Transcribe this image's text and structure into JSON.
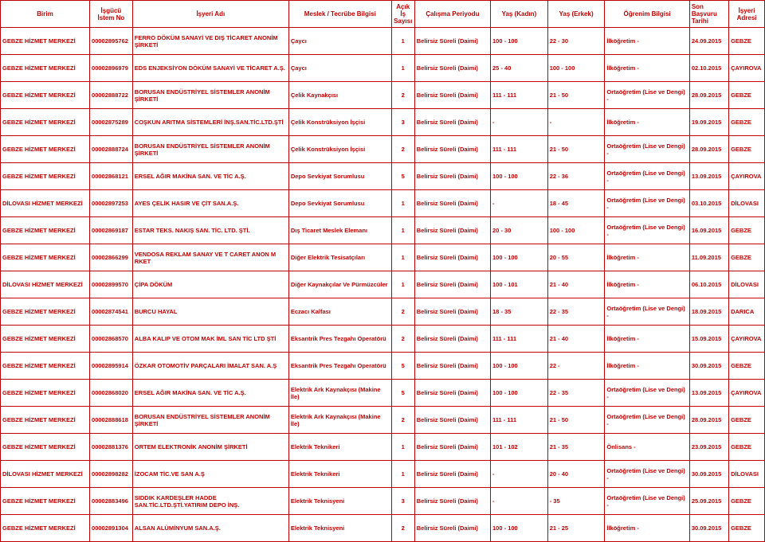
{
  "columns": [
    {
      "key": "birim",
      "label": "Birim",
      "class": "col-birim"
    },
    {
      "key": "istem",
      "label": "İşgücü İstem No",
      "class": "col-istem"
    },
    {
      "key": "isyeri",
      "label": "İşyeri Adı",
      "class": "col-isyeri"
    },
    {
      "key": "meslek",
      "label": "Meslek / Tecrübe Bilgisi",
      "class": "col-meslek"
    },
    {
      "key": "acik",
      "label": "Açık İş Sayısı",
      "class": "col-acik"
    },
    {
      "key": "calisma",
      "label": "Çalışma Periyodu",
      "class": "col-calisma"
    },
    {
      "key": "yaskadin",
      "label": "Yaş (Kadın)",
      "class": "col-yaskadin"
    },
    {
      "key": "yaserkek",
      "label": "Yaş (Erkek)",
      "class": "col-yaserkek"
    },
    {
      "key": "ogrenim",
      "label": "Öğrenim Bilgisi",
      "class": "col-ogrenim"
    },
    {
      "key": "tarih",
      "label": "Son Başvuru Tarihi",
      "class": "col-tarih"
    },
    {
      "key": "adres",
      "label": "İşyeri Adresi",
      "class": "col-adres"
    }
  ],
  "rows": [
    {
      "birim": "GEBZE HİZMET MERKEZİ",
      "istem": "00002895762",
      "isyeri": "FERRO DÖKÜM SANAYİ VE DIŞ TİCARET ANONİM ŞİRKETİ",
      "meslek": "Çaycı",
      "acik": "1",
      "calisma": "Belirsiz Süreli (Daimi)",
      "yaskadin": "100 - 100",
      "yaserkek": "22 - 30",
      "ogrenim": "İlköğretim -",
      "tarih": "24.09.2015",
      "adres": "GEBZE"
    },
    {
      "birim": "GEBZE HİZMET MERKEZİ",
      "istem": "00002896979",
      "isyeri": "EDS ENJEKSİYON DÖKÜM SANAYİ VE TİCARET A.Ş.",
      "meslek": "Çaycı",
      "acik": "1",
      "calisma": "Belirsiz Süreli (Daimi)",
      "yaskadin": "25 - 40",
      "yaserkek": "100 - 100",
      "ogrenim": "İlköğretim -",
      "tarih": "02.10.2015",
      "adres": "ÇAYIROVA"
    },
    {
      "birim": "GEBZE HİZMET MERKEZİ",
      "istem": "00002888722",
      "isyeri": "BORUSAN ENDÜSTRİYEL SİSTEMLER ANONİM ŞİRKETİ",
      "meslek": "Çelik Kaynakçısı",
      "acik": "2",
      "calisma": "Belirsiz Süreli (Daimi)",
      "yaskadin": "111 - 111",
      "yaserkek": "21 - 50",
      "ogrenim": "Ortaöğretim (Lise ve Dengi) -",
      "tarih": "28.09.2015",
      "adres": "GEBZE"
    },
    {
      "birim": "GEBZE HİZMET MERKEZİ",
      "istem": "00002875289",
      "isyeri": "COŞKUN ARITMA SİSTEMLERİ İNŞ.SAN.TİC.LTD.ŞTİ",
      "meslek": "Çelik Konstrüksiyon İşçisi",
      "acik": "3",
      "calisma": "Belirsiz Süreli (Daimi)",
      "yaskadin": "-",
      "yaserkek": "-",
      "ogrenim": "İlköğretim -",
      "tarih": "19.09.2015",
      "adres": "GEBZE"
    },
    {
      "birim": "GEBZE HİZMET MERKEZİ",
      "istem": "00002888724",
      "isyeri": "BORUSAN ENDÜSTRİYEL SİSTEMLER ANONİM ŞİRKETİ",
      "meslek": "Çelik Konstrüksiyon İşçisi",
      "acik": "2",
      "calisma": "Belirsiz Süreli (Daimi)",
      "yaskadin": "111 - 111",
      "yaserkek": "21 - 50",
      "ogrenim": "Ortaöğretim (Lise ve Dengi) -",
      "tarih": "28.09.2015",
      "adres": "GEBZE"
    },
    {
      "birim": "GEBZE HİZMET MERKEZİ",
      "istem": "00002868121",
      "isyeri": "ERSEL AĞIR MAKİNA SAN. VE TİC A.Ş.",
      "meslek": "Depo Sevkiyat Sorumlusu",
      "acik": "5",
      "calisma": "Belirsiz Süreli (Daimi)",
      "yaskadin": "100 - 100",
      "yaserkek": "22 - 36",
      "ogrenim": "Ortaöğretim (Lise ve Dengi) -",
      "tarih": "13.09.2015",
      "adres": "ÇAYIROVA"
    },
    {
      "birim": "DİLOVASI HİZMET MERKEZİ",
      "istem": "00002897253",
      "isyeri": "AYES ÇELİK HASIR VE ÇİT SAN.A.Ş.",
      "meslek": "Depo Sevkiyat Sorumlusu",
      "acik": "1",
      "calisma": "Belirsiz Süreli (Daimi)",
      "yaskadin": "-",
      "yaserkek": "18 - 45",
      "ogrenim": "Ortaöğretim (Lise ve Dengi) -",
      "tarih": "03.10.2015",
      "adres": "DİLOVASI"
    },
    {
      "birim": "GEBZE HİZMET MERKEZİ",
      "istem": "00002869187",
      "isyeri": "ESTAR TEKS. NAKIŞ SAN. TİC. LTD. ŞTİ.",
      "meslek": "Dış Ticaret Meslek Elemanı",
      "acik": "1",
      "calisma": "Belirsiz Süreli (Daimi)",
      "yaskadin": "20 - 30",
      "yaserkek": "100 - 100",
      "ogrenim": "Ortaöğretim (Lise ve Dengi) -",
      "tarih": "16.09.2015",
      "adres": "GEBZE"
    },
    {
      "birim": "GEBZE HİZMET MERKEZİ",
      "istem": "00002866299",
      "isyeri": "VENDOSA REKLAM SANAY VE T CARET ANON M RKET",
      "meslek": "Diğer Elektrik Tesisatçıları",
      "acik": "1",
      "calisma": "Belirsiz Süreli (Daimi)",
      "yaskadin": "100 - 100",
      "yaserkek": "20 - 55",
      "ogrenim": "İlköğretim -",
      "tarih": "11.09.2015",
      "adres": "GEBZE"
    },
    {
      "birim": "DİLOVASI HİZMET MERKEZİ",
      "istem": "00002899570",
      "isyeri": "ÇİPA DÖKÜM",
      "meslek": "Diğer Kaynakçılar Ve Pürmüzcüler",
      "acik": "1",
      "calisma": "Belirsiz Süreli (Daimi)",
      "yaskadin": "100 - 101",
      "yaserkek": "21 - 40",
      "ogrenim": "İlköğretim -",
      "tarih": "06.10.2015",
      "adres": "DİLOVASI"
    },
    {
      "birim": "GEBZE HİZMET MERKEZİ",
      "istem": "00002874541",
      "isyeri": "BURCU HAYAL",
      "meslek": "Eczacı Kalfası",
      "acik": "2",
      "calisma": "Belirsiz Süreli (Daimi)",
      "yaskadin": "18 - 35",
      "yaserkek": "22 - 35",
      "ogrenim": "Ortaöğretim (Lise ve Dengi) -",
      "tarih": "18.09.2015",
      "adres": "DARICA"
    },
    {
      "birim": "GEBZE HİZMET MERKEZİ",
      "istem": "00002868570",
      "isyeri": "ALBA KALIP VE OTOM MAK İML SAN TİC LTD ŞTİ",
      "meslek": "Eksantrik Pres Tezgahı Operatörü",
      "acik": "2",
      "calisma": "Belirsiz Süreli (Daimi)",
      "yaskadin": "111 - 111",
      "yaserkek": "21 - 40",
      "ogrenim": "İlköğretim -",
      "tarih": "15.09.2015",
      "adres": "ÇAYIROVA"
    },
    {
      "birim": "GEBZE HİZMET MERKEZİ",
      "istem": "00002895914",
      "isyeri": "ÖZKAR OTOMOTİV PARÇALARI İMALAT SAN. A.Ş",
      "meslek": "Eksantrik Pres Tezgahı Operatörü",
      "acik": "5",
      "calisma": "Belirsiz Süreli (Daimi)",
      "yaskadin": "100 - 100",
      "yaserkek": "22 -",
      "ogrenim": "İlköğretim -",
      "tarih": "30.09.2015",
      "adres": "GEBZE"
    },
    {
      "birim": "GEBZE HİZMET MERKEZİ",
      "istem": "00002868020",
      "isyeri": "ERSEL AĞIR MAKİNA SAN. VE TİC A.Ş.",
      "meslek": "Elektrik Ark Kaynakçısı (Makine İle)",
      "acik": "5",
      "calisma": "Belirsiz Süreli (Daimi)",
      "yaskadin": "100 - 100",
      "yaserkek": "22 - 35",
      "ogrenim": "Ortaöğretim (Lise ve Dengi) -",
      "tarih": "13.09.2015",
      "adres": "ÇAYIROVA"
    },
    {
      "birim": "GEBZE HİZMET MERKEZİ",
      "istem": "00002888618",
      "isyeri": "BORUSAN ENDÜSTRİYEL SİSTEMLER ANONİM ŞİRKETİ",
      "meslek": "Elektrik Ark Kaynakçısı (Makine İle)",
      "acik": "2",
      "calisma": "Belirsiz Süreli (Daimi)",
      "yaskadin": "111 - 111",
      "yaserkek": "21 - 50",
      "ogrenim": "Ortaöğretim (Lise ve Dengi) -",
      "tarih": "28.09.2015",
      "adres": "GEBZE"
    },
    {
      "birim": "GEBZE HİZMET MERKEZİ",
      "istem": "00002881376",
      "isyeri": "ORTEM ELEKTRONİK ANONİM ŞİRKETİ",
      "meslek": "Elektrik Teknikeri",
      "acik": "1",
      "calisma": "Belirsiz Süreli (Daimi)",
      "yaskadin": "101 - 102",
      "yaserkek": "21 - 35",
      "ogrenim": "Önlisans -",
      "tarih": "23.09.2015",
      "adres": "GEBZE"
    },
    {
      "birim": "DİLOVASI HİZMET MERKEZİ",
      "istem": "00002898282",
      "isyeri": "İZOCAM TİC.VE SAN A.Ş",
      "meslek": "Elektrik Teknikeri",
      "acik": "1",
      "calisma": "Belirsiz Süreli (Daimi)",
      "yaskadin": "-",
      "yaserkek": "20 - 40",
      "ogrenim": "Ortaöğretim (Lise ve Dengi) -",
      "tarih": "30.09.2015",
      "adres": "DİLOVASI"
    },
    {
      "birim": "GEBZE HİZMET MERKEZİ",
      "istem": "00002883496",
      "isyeri": "SIDDIK KARDEŞLER HADDE SAN.TİC.LTD.ŞTİ.YATIRIM DEPO İNŞ.",
      "meslek": "Elektrik Teknisyeni",
      "acik": "3",
      "calisma": "Belirsiz Süreli (Daimi)",
      "yaskadin": "-",
      "yaserkek": "- 35",
      "ogrenim": "Ortaöğretim (Lise ve Dengi) -",
      "tarih": "25.09.2015",
      "adres": "GEBZE"
    },
    {
      "birim": "GEBZE HİZMET MERKEZİ",
      "istem": "00002891304",
      "isyeri": "ALSAN ALÜMİNYUM SAN.A.Ş.",
      "meslek": "Elektrik Teknisyeni",
      "acik": "2",
      "calisma": "Belirsiz Süreli (Daimi)",
      "yaskadin": "100 - 100",
      "yaserkek": "21 - 25",
      "ogrenim": "İlköğretim -",
      "tarih": "30.09.2015",
      "adres": "GEBZE"
    }
  ]
}
